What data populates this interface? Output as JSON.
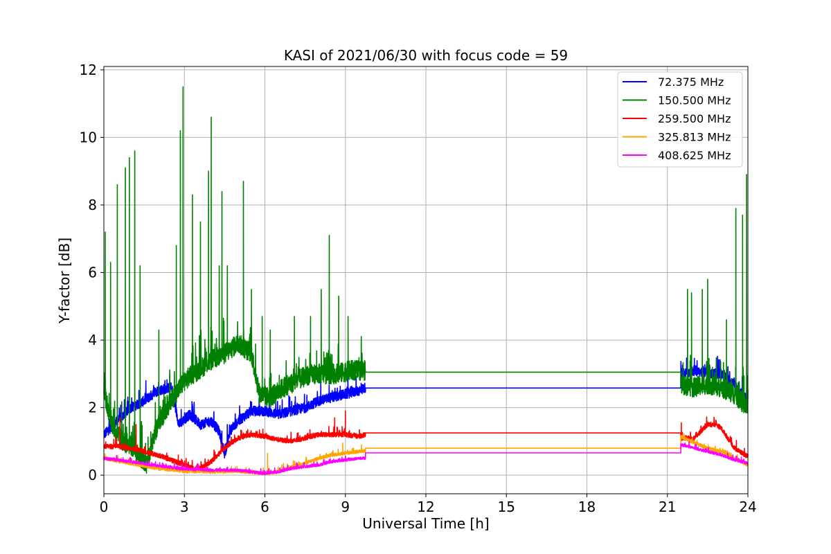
{
  "chart_data": {
    "type": "line",
    "title": "KASI of 2021/06/30 with focus code = 59",
    "xlabel": "Universal Time [h]",
    "ylabel": "Y-factor [dB]",
    "xlim": [
      0,
      24
    ],
    "ylim": [
      -0.55,
      12.1
    ],
    "xticks": [
      0,
      3,
      6,
      9,
      12,
      15,
      18,
      21,
      24
    ],
    "yticks": [
      0,
      2,
      4,
      6,
      8,
      10,
      12
    ],
    "grid": true,
    "legend_position": "top-right",
    "gap": {
      "start": 9.75,
      "end": 21.5
    },
    "series": [
      {
        "name": "  72.375 MHz",
        "color": "#0000ff",
        "noise": 0.15,
        "x": [
          0,
          0.5,
          1.0,
          1.5,
          2.0,
          2.5,
          2.8,
          3.2,
          3.6,
          4.0,
          4.3,
          4.5,
          4.7,
          5.0,
          5.5,
          6.0,
          6.5,
          7.0,
          7.5,
          8.0,
          8.5,
          9.0,
          9.5,
          9.75,
          21.5,
          22.0,
          22.5,
          23.0,
          23.5,
          24.0
        ],
        "y": [
          1.2,
          1.6,
          2.0,
          2.2,
          2.5,
          2.6,
          1.5,
          1.8,
          1.5,
          1.6,
          1.3,
          0.6,
          1.3,
          1.6,
          1.9,
          1.9,
          1.8,
          1.9,
          2.0,
          2.2,
          2.3,
          2.4,
          2.5,
          2.6,
          3.0,
          3.1,
          3.0,
          3.0,
          2.7,
          2.2
        ],
        "flat": 2.58
      },
      {
        "name": "150.500 MHz",
        "color": "#008000",
        "noise": 0.3,
        "x": [
          0,
          0.3,
          0.7,
          1.0,
          1.4,
          1.6,
          2.0,
          2.5,
          3.0,
          3.5,
          4.0,
          4.5,
          5.0,
          5.5,
          5.8,
          6.2,
          6.7,
          7.2,
          7.7,
          8.2,
          8.7,
          9.2,
          9.75,
          21.5,
          22.0,
          22.5,
          23.0,
          23.5,
          24.0
        ],
        "y": [
          2.5,
          1.5,
          1.0,
          0.9,
          0.5,
          0.3,
          1.5,
          2.2,
          2.8,
          3.1,
          3.4,
          3.6,
          3.9,
          3.6,
          2.4,
          2.3,
          2.6,
          2.8,
          3.0,
          3.0,
          3.0,
          3.1,
          3.1,
          2.7,
          2.6,
          2.7,
          2.6,
          2.4,
          2.0
        ],
        "flat": 3.05,
        "spikes": [
          [
            0.05,
            7.2
          ],
          [
            0.25,
            6.3
          ],
          [
            0.5,
            8.6
          ],
          [
            0.8,
            9.1
          ],
          [
            0.95,
            9.4
          ],
          [
            1.15,
            9.6
          ],
          [
            1.35,
            6.2
          ],
          [
            2.05,
            4.3
          ],
          [
            2.7,
            6.8
          ],
          [
            2.85,
            10.2
          ],
          [
            2.95,
            11.5
          ],
          [
            3.3,
            8.3
          ],
          [
            3.6,
            7.5
          ],
          [
            3.9,
            9.0
          ],
          [
            4.0,
            10.6
          ],
          [
            4.3,
            6.2
          ],
          [
            4.4,
            8.4
          ],
          [
            4.6,
            6.2
          ],
          [
            5.2,
            8.7
          ],
          [
            5.5,
            5.5
          ],
          [
            5.9,
            4.7
          ],
          [
            6.2,
            4.3
          ],
          [
            7.1,
            4.7
          ],
          [
            7.7,
            4.7
          ],
          [
            8.1,
            5.5
          ],
          [
            8.4,
            7.1
          ],
          [
            8.75,
            5.3
          ],
          [
            9.1,
            4.7
          ],
          [
            21.75,
            5.5
          ],
          [
            21.9,
            5.4
          ],
          [
            22.3,
            5.5
          ],
          [
            22.5,
            5.8
          ],
          [
            23.2,
            4.6
          ],
          [
            23.55,
            7.9
          ],
          [
            23.8,
            7.7
          ],
          [
            23.95,
            8.9
          ]
        ]
      },
      {
        "name": "259.500 MHz",
        "color": "#ff0000",
        "noise": 0.07,
        "x": [
          0,
          0.5,
          1.0,
          1.5,
          2.0,
          2.5,
          3.0,
          3.5,
          4.0,
          4.5,
          5.0,
          5.5,
          6.0,
          6.5,
          7.0,
          7.5,
          8.0,
          8.5,
          9.0,
          9.5,
          9.75,
          21.5,
          22.0,
          22.5,
          22.8,
          23.0,
          23.5,
          24.0
        ],
        "y": [
          0.85,
          0.85,
          0.8,
          0.7,
          0.6,
          0.45,
          0.3,
          0.15,
          0.4,
          0.8,
          1.1,
          1.2,
          1.15,
          1.05,
          1.0,
          1.1,
          1.2,
          1.2,
          1.2,
          1.15,
          1.2,
          1.1,
          1.1,
          1.5,
          1.5,
          1.4,
          0.8,
          0.55
        ],
        "flat": 1.25,
        "spikes": [
          [
            0.6,
            1.7
          ],
          [
            1.2,
            1.5
          ],
          [
            8.6,
            1.7
          ],
          [
            9.0,
            1.9
          ],
          [
            21.52,
            1.55
          ]
        ]
      },
      {
        "name": "325.813 MHz",
        "color": "#ffa500",
        "noise": 0.05,
        "x": [
          0,
          1.0,
          2.0,
          3.0,
          4.0,
          5.0,
          6.0,
          6.5,
          7.0,
          7.5,
          8.0,
          8.5,
          9.0,
          9.5,
          9.75,
          21.5,
          22.0,
          22.5,
          23.0,
          23.5,
          24.0
        ],
        "y": [
          0.5,
          0.35,
          0.2,
          0.12,
          0.1,
          0.12,
          0.05,
          0.1,
          0.25,
          0.35,
          0.5,
          0.6,
          0.65,
          0.7,
          0.72,
          1.15,
          0.95,
          0.8,
          0.7,
          0.5,
          0.3
        ],
        "flat": 0.8,
        "spikes": [
          [
            6.1,
            0.65
          ],
          [
            8.9,
            0.95
          ],
          [
            9.6,
            0.9
          ]
        ]
      },
      {
        "name": "408.625 MHz",
        "color": "#ff00ff",
        "noise": 0.04,
        "x": [
          0,
          1.0,
          2.0,
          3.0,
          4.0,
          5.0,
          6.0,
          6.5,
          7.0,
          7.5,
          8.0,
          8.5,
          9.0,
          9.5,
          9.75,
          21.5,
          22.0,
          22.5,
          23.0,
          23.5,
          24.0
        ],
        "y": [
          0.5,
          0.4,
          0.28,
          0.18,
          0.15,
          0.15,
          0.05,
          0.1,
          0.2,
          0.25,
          0.3,
          0.4,
          0.45,
          0.5,
          0.5,
          0.9,
          0.8,
          0.7,
          0.6,
          0.45,
          0.35
        ],
        "flat": 0.66
      }
    ]
  }
}
